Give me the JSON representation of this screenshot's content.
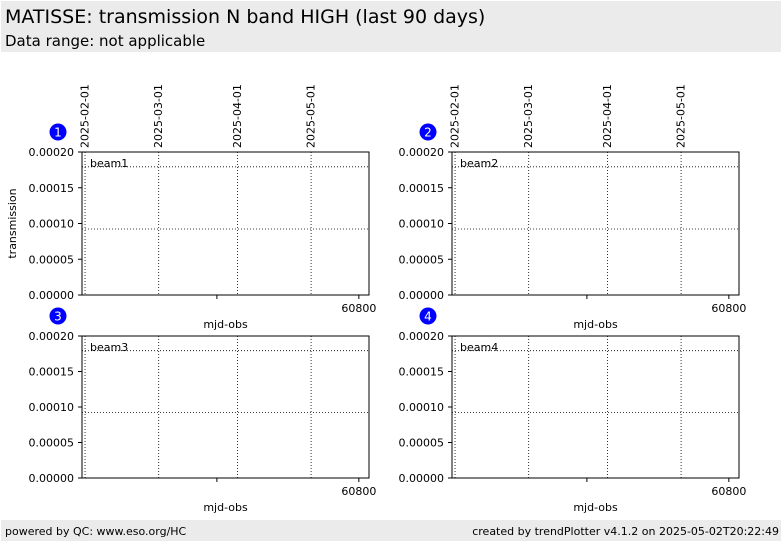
{
  "header": {
    "title": "MATISSE: transmission N band HIGH (last 90 days)",
    "subtitle": "Data range: not applicable"
  },
  "footer": {
    "left": "powered by QC: www.eso.org/HC",
    "right": "created by trendPlotter v4.1.2 on 2025-05-02T20:22:49"
  },
  "colors": {
    "header_bg": "#ebebeb",
    "badge": "#0000ff",
    "axis": "#000000"
  },
  "chart_data": [
    {
      "type": "scatter",
      "badge": "1",
      "beam_label": "beam1",
      "ylabel": "transmission",
      "xlabel": "mjd-obs",
      "ylim": [
        0,
        0.0002
      ],
      "yticks": [
        "0.00000",
        "0.00005",
        "0.00010",
        "0.00015",
        "0.00020"
      ],
      "xlim": [
        60691,
        60804
      ],
      "xticks": [
        {
          "x": 60800,
          "label": "60800"
        }
      ],
      "top_date_ticks": [
        {
          "x": 60707,
          "label": "2025-02-01"
        },
        {
          "x": 60737,
          "label": "2025-03-01"
        },
        {
          "x": 60766,
          "label": "2025-04-01"
        },
        {
          "x": 60796,
          "label": "2025-05-01"
        }
      ],
      "ref_lines": [
        0.00018,
        9.3e-05
      ],
      "points": [],
      "grid": true
    },
    {
      "type": "scatter",
      "badge": "2",
      "beam_label": "beam2",
      "ylabel": "",
      "xlabel": "mjd-obs",
      "ylim": [
        0,
        0.0002
      ],
      "yticks": [
        "0.00000",
        "0.00005",
        "0.00010",
        "0.00015",
        "0.00020"
      ],
      "xlim": [
        60691,
        60804
      ],
      "xticks": [
        {
          "x": 60800,
          "label": "60800"
        }
      ],
      "top_date_ticks": [
        {
          "x": 60707,
          "label": "2025-02-01"
        },
        {
          "x": 60737,
          "label": "2025-03-01"
        },
        {
          "x": 60766,
          "label": "2025-04-01"
        },
        {
          "x": 60796,
          "label": "2025-05-01"
        }
      ],
      "ref_lines": [
        0.00018,
        9.3e-05
      ],
      "points": [],
      "grid": true
    },
    {
      "type": "scatter",
      "badge": "3",
      "beam_label": "beam3",
      "ylabel": "",
      "xlabel": "mjd-obs",
      "ylim": [
        0,
        0.0002
      ],
      "yticks": [
        "0.00000",
        "0.00005",
        "0.00010",
        "0.00015",
        "0.00020"
      ],
      "xlim": [
        60691,
        60804
      ],
      "xticks": [
        {
          "x": 60800,
          "label": "60800"
        }
      ],
      "top_date_ticks": [],
      "ref_lines": [
        0.00018,
        9.3e-05
      ],
      "points": [],
      "grid": true
    },
    {
      "type": "scatter",
      "badge": "4",
      "beam_label": "beam4",
      "ylabel": "",
      "xlabel": "mjd-obs",
      "ylim": [
        0,
        0.0002
      ],
      "yticks": [
        "0.00000",
        "0.00005",
        "0.00010",
        "0.00015",
        "0.00020"
      ],
      "xlim": [
        60691,
        60804
      ],
      "xticks": [
        {
          "x": 60800,
          "label": "60800"
        }
      ],
      "top_date_ticks": [],
      "ref_lines": [
        0.00018,
        9.3e-05
      ],
      "points": [],
      "grid": true
    }
  ]
}
